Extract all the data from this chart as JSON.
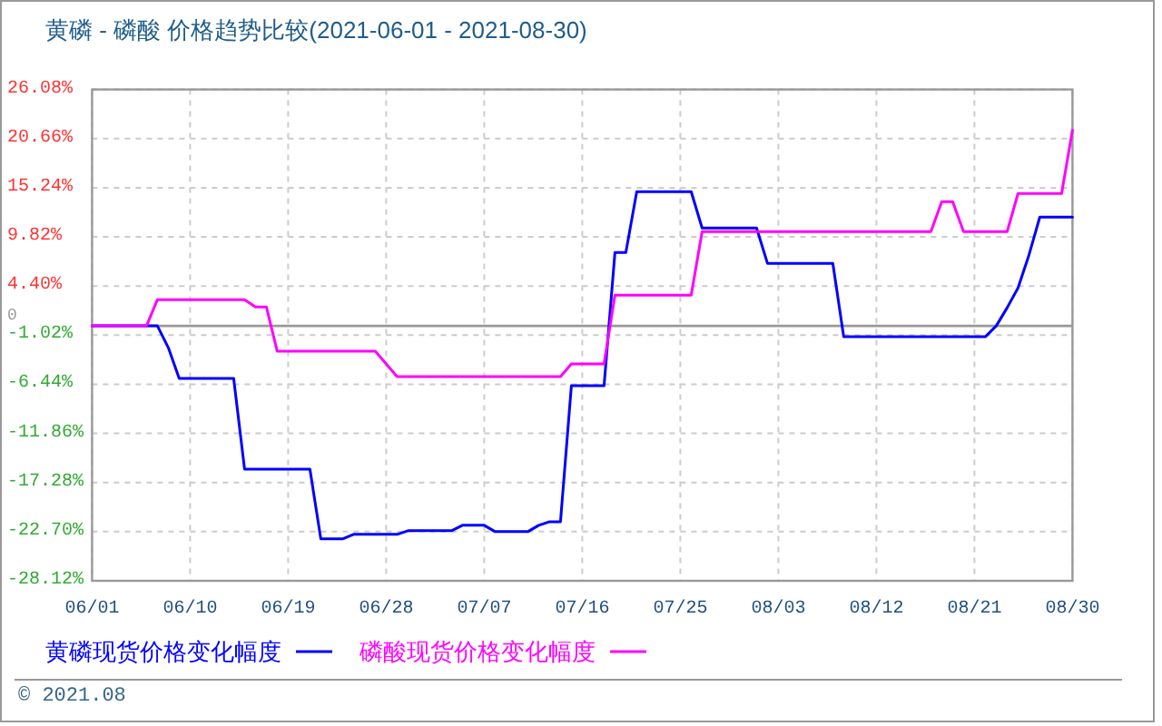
{
  "chart_data": {
    "type": "line",
    "title": "黄磷 - 磷酸 价格趋势比较(2021-06-01 - 2021-08-30)",
    "series": [
      {
        "name": "黄磷现货价格变化幅度",
        "color": "#0000ff",
        "x": [
          "2021-06-01",
          "2021-06-07",
          "2021-06-08",
          "2021-06-09",
          "2021-06-14",
          "2021-06-15",
          "2021-06-21",
          "2021-06-22",
          "2021-06-24",
          "2021-06-25",
          "2021-06-29",
          "2021-06-30",
          "2021-07-04",
          "2021-07-05",
          "2021-07-07",
          "2021-07-08",
          "2021-07-11",
          "2021-07-12",
          "2021-07-13",
          "2021-07-14",
          "2021-07-15",
          "2021-07-18",
          "2021-07-19",
          "2021-07-20",
          "2021-07-21",
          "2021-07-26",
          "2021-07-27",
          "2021-08-01",
          "2021-08-02",
          "2021-08-08",
          "2021-08-09",
          "2021-08-22",
          "2021-08-23",
          "2021-08-24",
          "2021-08-25",
          "2021-08-26",
          "2021-08-27",
          "2021-08-30"
        ],
        "values": [
          0,
          0,
          -2.4,
          -5.8,
          -5.8,
          -15.8,
          -15.8,
          -23.5,
          -23.5,
          -23.0,
          -23.0,
          -22.6,
          -22.6,
          -22.0,
          -22.0,
          -22.7,
          -22.7,
          -22.0,
          -21.6,
          -21.6,
          -6.6,
          -6.6,
          8.1,
          8.1,
          14.8,
          14.8,
          10.8,
          10.8,
          6.9,
          6.9,
          -1.2,
          -1.2,
          0.0,
          2.0,
          4.2,
          7.8,
          12.0,
          12.0
        ]
      },
      {
        "name": "磷酸现货价格变化幅度",
        "color": "#ff00ff",
        "x": [
          "2021-06-01",
          "2021-06-06",
          "2021-06-07",
          "2021-06-15",
          "2021-06-16",
          "2021-06-17",
          "2021-06-18",
          "2021-06-27",
          "2021-06-29",
          "2021-07-14",
          "2021-07-15",
          "2021-07-18",
          "2021-07-19",
          "2021-07-26",
          "2021-07-27",
          "2021-08-17",
          "2021-08-18",
          "2021-08-19",
          "2021-08-20",
          "2021-08-24",
          "2021-08-25",
          "2021-08-29",
          "2021-08-30"
        ],
        "values": [
          0,
          0,
          2.9,
          2.9,
          2.1,
          2.1,
          -2.8,
          -2.8,
          -5.6,
          -5.6,
          -4.2,
          -4.2,
          3.4,
          3.4,
          10.4,
          10.4,
          13.7,
          13.7,
          10.4,
          10.4,
          14.6,
          14.6,
          21.6
        ]
      }
    ],
    "xlim": [
      "2021-06-01",
      "2021-08-30"
    ],
    "xticks": [
      {
        "value": "2021-06-01",
        "label": "06/01"
      },
      {
        "value": "2021-06-10",
        "label": "06/10"
      },
      {
        "value": "2021-06-19",
        "label": "06/19"
      },
      {
        "value": "2021-06-28",
        "label": "06/28"
      },
      {
        "value": "2021-07-07",
        "label": "07/07"
      },
      {
        "value": "2021-07-16",
        "label": "07/16"
      },
      {
        "value": "2021-07-25",
        "label": "07/25"
      },
      {
        "value": "2021-08-03",
        "label": "08/03"
      },
      {
        "value": "2021-08-12",
        "label": "08/12"
      },
      {
        "value": "2021-08-21",
        "label": "08/21"
      },
      {
        "value": "2021-08-30",
        "label": "08/30"
      }
    ],
    "ylim": [
      -28.12,
      26.08
    ],
    "yticks": [
      {
        "value": 26.08,
        "label": "26.08%"
      },
      {
        "value": 20.66,
        "label": "20.66%"
      },
      {
        "value": 15.24,
        "label": "15.24%"
      },
      {
        "value": 9.82,
        "label": "9.82%"
      },
      {
        "value": 4.4,
        "label": "4.40%"
      },
      {
        "value": -1.02,
        "label": "-1.02%"
      },
      {
        "value": -6.44,
        "label": "-6.44%"
      },
      {
        "value": -11.86,
        "label": "-11.86%"
      },
      {
        "value": -17.28,
        "label": "-17.28%"
      },
      {
        "value": -22.7,
        "label": "-22.70%"
      },
      {
        "value": -28.12,
        "label": "-28.12%"
      }
    ],
    "ref_lines": [
      {
        "axis": "y",
        "value": 0,
        "label": "0",
        "color": "#999999"
      }
    ],
    "grid": true,
    "legend": "bottom",
    "annotations": [
      "© 2021.08"
    ]
  }
}
